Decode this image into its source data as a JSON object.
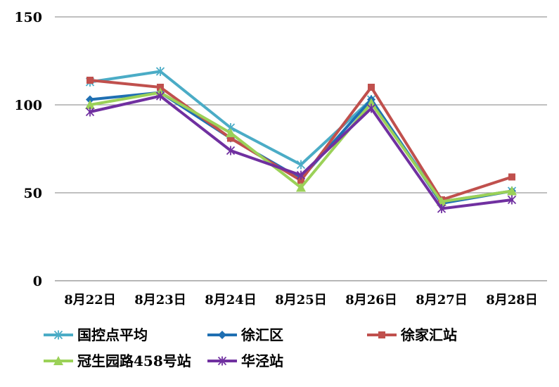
{
  "chart_data": {
    "type": "line",
    "title": "",
    "xlabel": "",
    "ylabel": "",
    "ylim": [
      0,
      150
    ],
    "yticks": [
      0,
      50,
      100,
      150
    ],
    "grid": true,
    "legend_placement": "bottom",
    "categories": [
      "8月22日",
      "8月23日",
      "8月24日",
      "8月25日",
      "8月26日",
      "8月27日",
      "8月28日"
    ],
    "series": [
      {
        "name": "国控点平均",
        "color": "#4BACC6",
        "marker": "asterisk",
        "values": [
          113,
          119,
          87,
          66,
          103,
          45,
          51
        ]
      },
      {
        "name": "徐汇区",
        "color": "#1F6FB2",
        "marker": "diamond",
        "values": [
          103,
          107,
          81,
          58,
          103,
          44,
          51
        ]
      },
      {
        "name": "徐家汇站",
        "color": "#C0504D",
        "marker": "square",
        "values": [
          114,
          110,
          81,
          57,
          110,
          46,
          59
        ]
      },
      {
        "name": "冠生园路458号站",
        "color": "#9BD158",
        "marker": "triangle",
        "values": [
          100,
          107,
          84,
          53,
          101,
          45,
          51
        ]
      },
      {
        "name": "华泾站",
        "color": "#7030A0",
        "marker": "asterisk",
        "values": [
          96,
          105,
          74,
          60,
          98,
          41,
          46
        ]
      }
    ]
  }
}
